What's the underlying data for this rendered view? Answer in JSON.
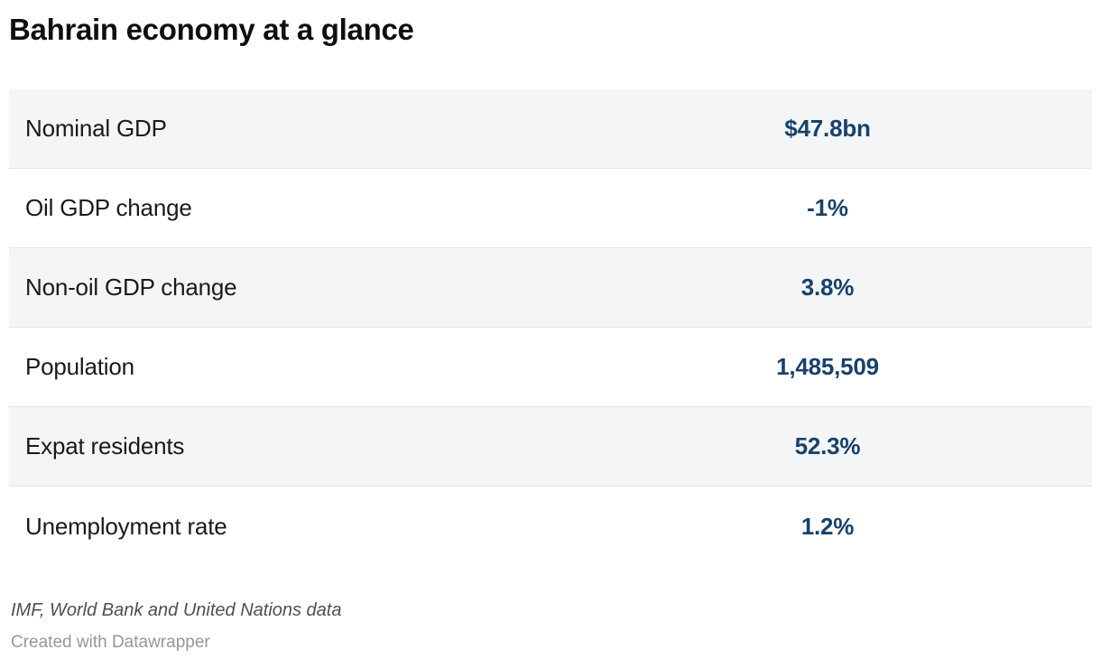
{
  "title": "Bahrain economy at a glance",
  "chart_data": {
    "type": "table",
    "title": "Bahrain economy at a glance",
    "rows": [
      {
        "label": "Nominal GDP",
        "value": "$47.8bn"
      },
      {
        "label": "Oil GDP change",
        "value": "-1%"
      },
      {
        "label": "Non-oil GDP change",
        "value": "3.8%"
      },
      {
        "label": "Population",
        "value": "1,485,509"
      },
      {
        "label": "Expat residents",
        "value": "52.3%"
      },
      {
        "label": "Unemployment rate",
        "value": "1.2%"
      }
    ],
    "source_note": "IMF, World Bank and United Nations data",
    "attribution": "Created with Datawrapper",
    "layout_hints": {
      "header_row": false,
      "alternating_row_shading": true,
      "value_alignment": "center"
    }
  },
  "colors": {
    "title_text": "#0f0f0f",
    "label_text": "#1a1a1a",
    "value_text": "#174269",
    "row_alt_background": "#f4f5f7",
    "row_border": "#e4e5e7",
    "source_text": "#4f4f4f",
    "attribution_text": "#979797",
    "background": "#ffffff"
  }
}
